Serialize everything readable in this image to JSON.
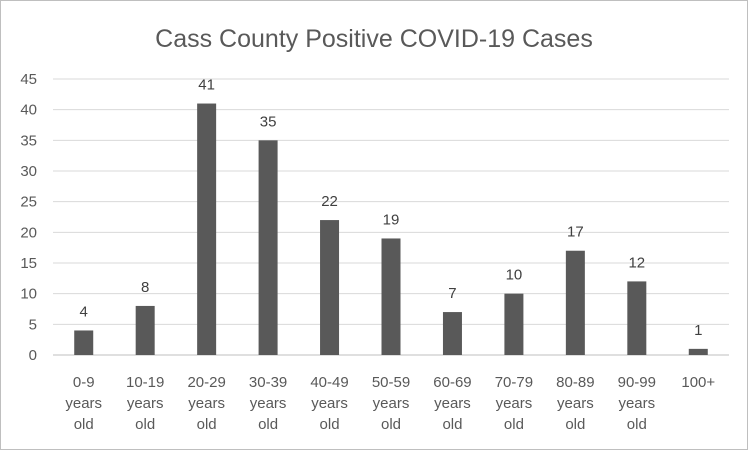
{
  "chart_data": {
    "type": "bar",
    "title": "Cass County Positive COVID-19 Cases",
    "xlabel": "",
    "ylabel": "",
    "categories": [
      [
        "0-9",
        "years",
        "old"
      ],
      [
        "10-19",
        "years",
        "old"
      ],
      [
        "20-29",
        "years",
        "old"
      ],
      [
        "30-39",
        "years",
        "old"
      ],
      [
        "40-49",
        "years",
        "old"
      ],
      [
        "50-59",
        "years",
        "old"
      ],
      [
        "60-69",
        "years",
        "old"
      ],
      [
        "70-79",
        "years",
        "old"
      ],
      [
        "80-89",
        "years",
        "old"
      ],
      [
        "90-99",
        "years",
        "old"
      ],
      [
        "100+"
      ]
    ],
    "values": [
      4,
      8,
      41,
      35,
      22,
      19,
      7,
      10,
      17,
      12,
      1
    ],
    "ylim": [
      0,
      45
    ],
    "yticks": [
      0,
      5,
      10,
      15,
      20,
      25,
      30,
      35,
      40,
      45
    ],
    "grid": true,
    "data_labels": true,
    "bar_color": "#595959"
  }
}
